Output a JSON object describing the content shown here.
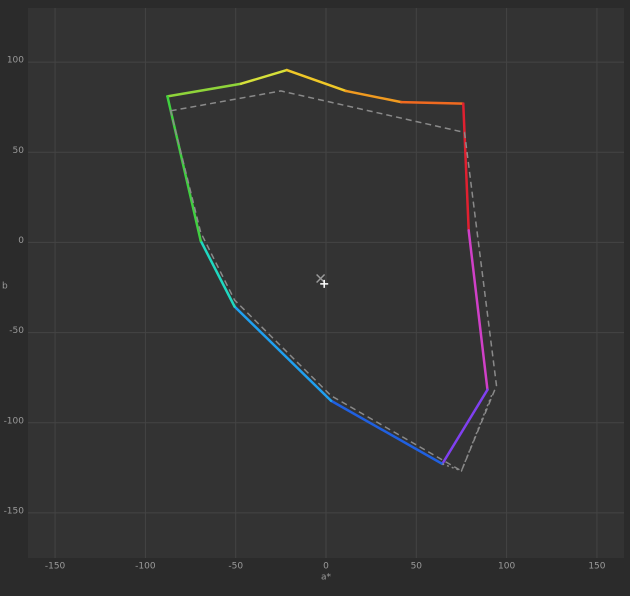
{
  "chart_data": {
    "type": "gamut",
    "x_label": "a*",
    "y_label": "b",
    "xlim": [
      -165,
      165
    ],
    "ylim": [
      -175,
      130
    ],
    "xticks": [
      -150,
      -100,
      -50,
      0,
      50,
      100,
      150
    ],
    "yticks": [
      -150,
      -100,
      -50,
      0,
      50,
      100
    ],
    "grid": true,
    "series": [
      {
        "style": "solid",
        "closed": true,
        "x": [
          -87.8,
          -47,
          -21.7,
          11,
          41.7,
          76,
          79,
          89.4,
          64.4,
          2.8,
          -50.6,
          -69.4
        ],
        "y": [
          81,
          88,
          95.6,
          84,
          77.8,
          77,
          6.7,
          -81.7,
          -122.8,
          -87.8,
          -35.6,
          1
        ],
        "colors": [
          "#8fd43a",
          "#d6e03a",
          "#f0c828",
          "#f09a20",
          "#f06a20",
          "#e02030",
          "#d040c8",
          "#8040f0",
          "#2060e0",
          "#20a0f0",
          "#20d8c0",
          "#40d040"
        ]
      },
      {
        "style": "dashed",
        "closed": true,
        "color": "#8a8a8a",
        "x": [
          -86,
          -25,
          76.7,
          94.4,
          75,
          2.8,
          -50.6,
          -69.4
        ],
        "y": [
          73,
          84,
          61,
          -79.4,
          -126.7,
          -85,
          -32,
          5.6
        ]
      },
      {
        "style": "dotted",
        "closed": false,
        "color": "#8a8a8a",
        "x": [
          64.4,
          75,
          92
        ],
        "y": [
          -122.8,
          -126.7,
          -84
        ]
      }
    ],
    "markers": [
      {
        "x": -3,
        "y": -20,
        "symbol": "x",
        "color": "#9a9a9a"
      },
      {
        "x": -1,
        "y": -23,
        "symbol": "+",
        "color": "#ffffff"
      }
    ]
  }
}
